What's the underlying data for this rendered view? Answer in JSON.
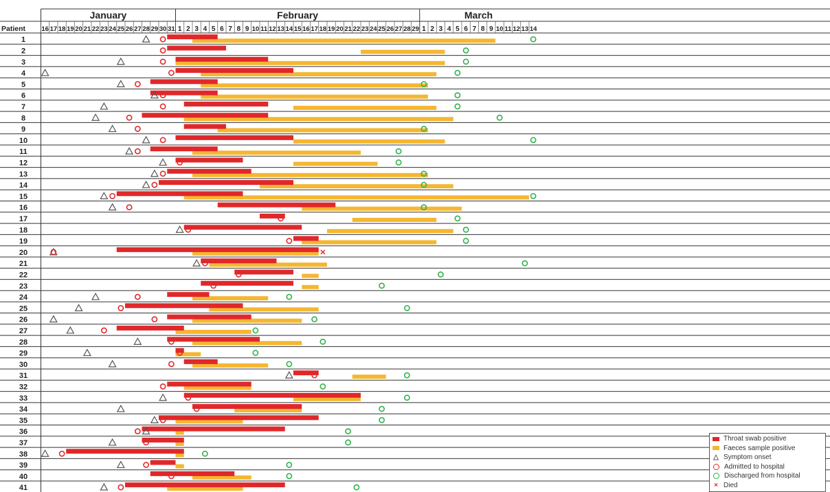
{
  "chart_data": {
    "type": "timeline",
    "title": "",
    "months": [
      {
        "name": "January",
        "first_day": 16,
        "last_day": 31
      },
      {
        "name": "February",
        "first_day": 1,
        "last_day": 29
      },
      {
        "name": "March",
        "first_day": 1,
        "last_day": 14
      }
    ],
    "row_header": "Patient",
    "day_ticks": [
      16,
      17,
      18,
      19,
      20,
      21,
      22,
      23,
      24,
      25,
      26,
      27,
      28,
      29,
      30,
      31,
      1,
      2,
      3,
      4,
      5,
      6,
      7,
      8,
      9,
      10,
      11,
      12,
      13,
      14,
      15,
      16,
      17,
      18,
      19,
      20,
      21,
      22,
      23,
      24,
      25,
      26,
      27,
      28,
      29,
      1,
      2,
      3,
      4,
      5,
      6,
      7,
      8,
      9,
      10,
      11,
      12,
      13,
      14
    ],
    "date_origin_note": "Dates as day index from Jan 16 = 0",
    "patients": [
      {
        "id": "1",
        "onset": "Jan 28",
        "admitted": "Jan 30",
        "throat": [
          [
            "Jan 31",
            "Feb 5"
          ]
        ],
        "faeces": [
          [
            "Feb 3",
            "Mar 9"
          ]
        ],
        "discharged": "Mar 14"
      },
      {
        "id": "2",
        "admitted": "Jan 30",
        "throat": [
          [
            "Jan 31",
            "Feb 6"
          ]
        ],
        "faeces": [
          [
            "Feb 23",
            "Mar 3"
          ]
        ],
        "discharged": "Mar 6"
      },
      {
        "id": "3",
        "onset": "Jan 25",
        "admitted": "Jan 30",
        "throat": [
          [
            "Feb 1",
            "Feb 11"
          ]
        ],
        "faeces": [
          [
            "Feb 1",
            "Mar 3"
          ]
        ],
        "discharged": "Mar 6"
      },
      {
        "id": "4",
        "onset": "Jan 16",
        "admitted": "Jan 31",
        "throat": [
          [
            "Feb 1",
            "Feb 14"
          ]
        ],
        "faeces": [
          [
            "Feb 4",
            "Mar 2"
          ]
        ],
        "discharged": "Mar 5"
      },
      {
        "id": "5",
        "onset": "Jan 25",
        "admitted": "Jan 27",
        "throat": [
          [
            "Jan 29",
            "Feb 5"
          ]
        ],
        "faeces": [
          [
            "Feb 4",
            "Mar 1"
          ]
        ],
        "discharged": "Mar 1"
      },
      {
        "id": "6",
        "onset": "Jan 29",
        "admitted": "Jan 30",
        "throat": [
          [
            "Jan 29",
            "Feb 5"
          ]
        ],
        "faeces": [
          [
            "Feb 4",
            "Mar 1"
          ]
        ],
        "discharged": "Mar 5"
      },
      {
        "id": "7",
        "onset": "Jan 23",
        "admitted": "Jan 30",
        "throat": [
          [
            "Feb 2",
            "Feb 11"
          ]
        ],
        "faeces": [
          [
            "Feb 15",
            "Mar 2"
          ]
        ],
        "discharged": "Mar 5"
      },
      {
        "id": "8",
        "onset": "Jan 22",
        "admitted": "Jan 26",
        "throat": [
          [
            "Jan 28",
            "Feb 11"
          ]
        ],
        "faeces": [
          [
            "Feb 2",
            "Mar 4"
          ]
        ],
        "discharged": "Mar 10"
      },
      {
        "id": "9",
        "onset": "Jan 24",
        "admitted": "Jan 27",
        "throat": [
          [
            "Feb 2",
            "Feb 6"
          ]
        ],
        "faeces": [
          [
            "Feb 6",
            "Mar 1"
          ]
        ],
        "discharged": "Mar 1"
      },
      {
        "id": "10",
        "onset": "Jan 28",
        "admitted": "Jan 30",
        "throat": [
          [
            "Feb 1",
            "Feb 14"
          ]
        ],
        "faeces": [
          [
            "Feb 15",
            "Mar 3"
          ]
        ],
        "discharged": "Mar 14"
      },
      {
        "id": "11",
        "onset": "Jan 26",
        "admitted": "Jan 27",
        "throat": [
          [
            "Jan 29",
            "Feb 5"
          ]
        ],
        "faeces": [
          [
            "Feb 3",
            "Feb 22"
          ]
        ],
        "discharged": "Feb 27"
      },
      {
        "id": "12",
        "onset": "Jan 30",
        "admitted": "Feb 1",
        "throat": [
          [
            "Feb 1",
            "Feb 8"
          ]
        ],
        "faeces": [
          [
            "Feb 15",
            "Feb 24"
          ]
        ],
        "discharged": "Feb 27"
      },
      {
        "id": "13",
        "onset": "Jan 29",
        "admitted": "Jan 30",
        "throat": [
          [
            "Jan 31",
            "Feb 9"
          ]
        ],
        "faeces": [
          [
            "Feb 3",
            "Mar 1"
          ]
        ],
        "discharged": "Mar 1"
      },
      {
        "id": "14",
        "onset": "Jan 28",
        "admitted": "Jan 29",
        "throat": [
          [
            "Jan 30",
            "Feb 14"
          ]
        ],
        "faeces": [
          [
            "Feb 11",
            "Mar 4"
          ]
        ],
        "discharged": "Mar 1"
      },
      {
        "id": "15",
        "onset": "Jan 23",
        "admitted": "Jan 24",
        "throat": [
          [
            "Jan 25",
            "Feb 8"
          ]
        ],
        "faeces": [
          [
            "Feb 2",
            "Mar 13"
          ]
        ],
        "discharged": "Mar 14"
      },
      {
        "id": "16",
        "onset": "Jan 24",
        "admitted": "Jan 26",
        "throat": [
          [
            "Feb 6",
            "Feb 19"
          ]
        ],
        "faeces": [
          [
            "Feb 16",
            "Mar 5"
          ]
        ],
        "discharged": "Mar 1"
      },
      {
        "id": "17",
        "admitted": "Feb 13",
        "throat": [
          [
            "Feb 11",
            "Feb 13"
          ]
        ],
        "faeces": [
          [
            "Feb 22",
            "Mar 2"
          ]
        ],
        "discharged": "Mar 5"
      },
      {
        "id": "18",
        "onset": "Feb 1",
        "admitted": "Feb 2",
        "throat": [
          [
            "Feb 2",
            "Feb 15"
          ]
        ],
        "faeces": [
          [
            "Feb 19",
            "Mar 4"
          ]
        ],
        "discharged": "Mar 6"
      },
      {
        "id": "19",
        "admitted": "Feb 14",
        "throat": [
          [
            "Feb 15",
            "Feb 17"
          ]
        ],
        "faeces": [
          [
            "Feb 16",
            "Mar 2"
          ]
        ],
        "discharged": "Mar 6"
      },
      {
        "id": "20",
        "onset": "Jan 17",
        "admitted": "Jan 17",
        "throat": [
          [
            "Jan 25",
            "Feb 17"
          ]
        ],
        "faeces": [
          [
            "Feb 3",
            "Feb 17"
          ]
        ],
        "died": "Feb 18"
      },
      {
        "id": "21",
        "onset": "Feb 3",
        "admitted": "Feb 4",
        "throat": [
          [
            "Feb 4",
            "Feb 12"
          ]
        ],
        "faeces": [
          [
            "Feb 5",
            "Feb 18"
          ]
        ],
        "discharged": "Mar 13"
      },
      {
        "id": "22",
        "admitted": "Feb 8",
        "throat": [
          [
            "Feb 8",
            "Feb 14"
          ]
        ],
        "faeces": [
          [
            "Feb 16",
            "Feb 17"
          ]
        ],
        "discharged": "Mar 3"
      },
      {
        "id": "23",
        "admitted": "Feb 5",
        "throat": [
          [
            "Feb 4",
            "Feb 14"
          ]
        ],
        "faeces": [
          [
            "Feb 16",
            "Feb 17"
          ]
        ],
        "discharged": "Feb 25"
      },
      {
        "id": "24",
        "onset": "Jan 22",
        "admitted": "Jan 27",
        "throat": [
          [
            "Jan 31",
            "Feb 4"
          ]
        ],
        "faeces": [
          [
            "Feb 3",
            "Feb 11"
          ]
        ],
        "discharged": "Feb 14"
      },
      {
        "id": "25",
        "onset": "Jan 20",
        "admitted": "Jan 25",
        "throat": [
          [
            "Jan 26",
            "Feb 8"
          ]
        ],
        "faeces": [
          [
            "Feb 5",
            "Feb 17"
          ]
        ],
        "discharged": "Feb 28"
      },
      {
        "id": "26",
        "onset": "Jan 17",
        "admitted": "Jan 29",
        "throat": [
          [
            "Jan 31",
            "Feb 9"
          ]
        ],
        "faeces": [
          [
            "Feb 3",
            "Feb 15"
          ]
        ],
        "discharged": "Feb 17"
      },
      {
        "id": "27",
        "onset": "Jan 19",
        "admitted": "Jan 23",
        "throat": [
          [
            "Jan 25",
            "Feb 1"
          ]
        ],
        "faeces": [
          [
            "Feb 1",
            "Feb 9"
          ]
        ],
        "discharged": "Feb 10"
      },
      {
        "id": "28",
        "onset": "Jan 27",
        "admitted": "Jan 31",
        "throat": [
          [
            "Jan 31",
            "Feb 10"
          ]
        ],
        "faeces": [
          [
            "Feb 3",
            "Feb 15"
          ]
        ],
        "discharged": "Feb 18"
      },
      {
        "id": "29",
        "onset": "Jan 21",
        "admitted": "Feb 1",
        "throat": [
          [
            "Feb 1",
            "Feb 1"
          ]
        ],
        "faeces": [
          [
            "Feb 1",
            "Feb 3"
          ]
        ],
        "discharged": "Feb 10"
      },
      {
        "id": "30",
        "onset": "Jan 24",
        "admitted": "Jan 31",
        "throat": [
          [
            "Feb 2",
            "Feb 5"
          ]
        ],
        "faeces": [
          [
            "Feb 3",
            "Feb 11"
          ]
        ],
        "discharged": "Feb 14"
      },
      {
        "id": "31",
        "onset": "Feb 14",
        "admitted": "Feb 17",
        "throat": [
          [
            "Feb 15",
            "Feb 17"
          ]
        ],
        "faeces": [
          [
            "Feb 22",
            "Feb 25"
          ]
        ],
        "discharged": "Feb 28"
      },
      {
        "id": "32",
        "admitted": "Jan 30",
        "throat": [
          [
            "Jan 31",
            "Feb 9"
          ]
        ],
        "faeces": [
          [
            "Feb 2",
            "Feb 9"
          ]
        ],
        "discharged": "Feb 18"
      },
      {
        "id": "33",
        "onset": "Jan 30",
        "admitted": "Feb 2",
        "throat": [
          [
            "Feb 2",
            "Feb 22"
          ]
        ],
        "faeces": [
          [
            "Feb 15",
            "Feb 22"
          ]
        ],
        "discharged": "Feb 28"
      },
      {
        "id": "34",
        "onset": "Jan 25",
        "admitted": "Feb 3",
        "throat": [
          [
            "Feb 3",
            "Feb 15"
          ]
        ],
        "faeces": [
          [
            "Feb 8",
            "Feb 15"
          ]
        ],
        "discharged": "Feb 25"
      },
      {
        "id": "35",
        "onset": "Jan 29",
        "admitted": "Jan 30",
        "throat": [
          [
            "Jan 30",
            "Feb 17"
          ]
        ],
        "faeces": [
          [
            "Feb 1",
            "Feb 8"
          ]
        ],
        "discharged": "Feb 25"
      },
      {
        "id": "36",
        "onset": "Jan 28",
        "admitted": "Jan 27",
        "throat": [
          [
            "Jan 28",
            "Feb 13"
          ]
        ],
        "faeces": [
          [
            "Feb 1",
            "Feb 1"
          ]
        ],
        "discharged": "Feb 21"
      },
      {
        "id": "37",
        "onset": "Jan 24",
        "admitted": "Jan 28",
        "throat": [
          [
            "Jan 28",
            "Feb 1"
          ]
        ],
        "faeces": [
          [
            "Feb 1",
            "Feb 1"
          ]
        ],
        "discharged": "Feb 21"
      },
      {
        "id": "38",
        "onset": "Jan 16",
        "admitted": "Jan 18",
        "throat": [
          [
            "Jan 19",
            "Feb 1"
          ]
        ],
        "faeces": [
          [
            "Feb 1",
            "Feb 1"
          ]
        ],
        "discharged": "Feb 4"
      },
      {
        "id": "39",
        "onset": "Jan 25",
        "admitted": "Jan 28",
        "throat": [
          [
            "Jan 29",
            "Jan 31"
          ]
        ],
        "faeces": [
          [
            "Feb 1",
            "Feb 1"
          ]
        ],
        "discharged": "Feb 14"
      },
      {
        "id": "40",
        "admitted": "Jan 31",
        "throat": [
          [
            "Jan 29",
            "Feb 7"
          ]
        ],
        "faeces": [
          [
            "Feb 3",
            "Feb 9"
          ]
        ],
        "discharged": "Feb 14"
      },
      {
        "id": "41",
        "onset": "Jan 23",
        "admitted": "Jan 25",
        "throat": [
          [
            "Jan 26",
            "Feb 13"
          ]
        ],
        "faeces": [
          [
            "Jan 31",
            "Feb 8"
          ]
        ],
        "discharged": "Feb 22"
      }
    ],
    "legend": [
      {
        "key": "throat",
        "label": "Throat swab positive",
        "color": "#e0282a",
        "symbol": "rect"
      },
      {
        "key": "faeces",
        "label": "Faeces sample positive",
        "color": "#f5b731",
        "symbol": "rect"
      },
      {
        "key": "onset",
        "label": "Symptom onset",
        "color": "#555555",
        "symbol": "triangle"
      },
      {
        "key": "admitted",
        "label": "Admitted to hospital",
        "color": "#e0282a",
        "symbol": "circle"
      },
      {
        "key": "discharged",
        "label": "Discharged from hospital",
        "color": "#2fb24a",
        "symbol": "circle"
      },
      {
        "key": "died",
        "label": "Died",
        "color": "#e0282a",
        "symbol": "x"
      }
    ],
    "legend_position": "bottom-right"
  }
}
